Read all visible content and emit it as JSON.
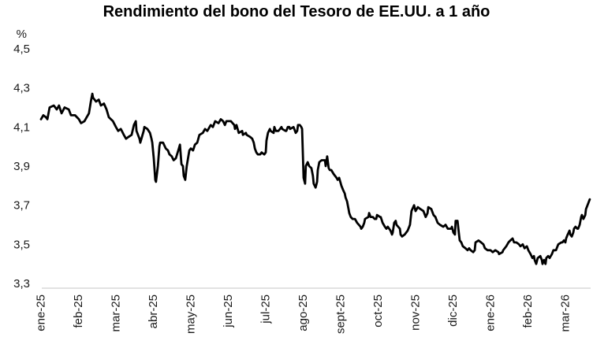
{
  "chart_data": {
    "type": "line",
    "title": "Rendimiento del bono del Tesoro de EE.UU. a 1 año",
    "unit_label": "%",
    "ylim": [
      3.3,
      4.5
    ],
    "ytick_step": 0.2,
    "ytick_labels": [
      "4,5",
      "4,3",
      "4,1",
      "3,9",
      "3,7",
      "3,5",
      "3,3"
    ],
    "ytick_values": [
      4.5,
      4.3,
      4.1,
      3.9,
      3.7,
      3.5,
      3.3
    ],
    "x_categories": [
      "ene-25",
      "feb-25",
      "mar-25",
      "abr-25",
      "may-25",
      "jun-25",
      "jul-25",
      "ago-25",
      "sept-25",
      "oct-25",
      "nov-25",
      "dic-25",
      "ene-26",
      "feb-26",
      "mar-26"
    ],
    "grid": false,
    "legend_position": "none",
    "axis_color": "#d9d9d9",
    "line_color": "#000000",
    "line_width": 2.8,
    "series": [
      {
        "name": "Rendimiento del bono del Tesoro de EE.UU. a 1 año",
        "x_unit": "meses desde ene-25",
        "points": [
          [
            0.0,
            4.14
          ],
          [
            0.06,
            4.16
          ],
          [
            0.13,
            4.15
          ],
          [
            0.17,
            4.14
          ],
          [
            0.23,
            4.2
          ],
          [
            0.34,
            4.21
          ],
          [
            0.42,
            4.19
          ],
          [
            0.48,
            4.21
          ],
          [
            0.55,
            4.17
          ],
          [
            0.63,
            4.2
          ],
          [
            0.74,
            4.19
          ],
          [
            0.8,
            4.16
          ],
          [
            0.91,
            4.16
          ],
          [
            1.01,
            4.14
          ],
          [
            1.07,
            4.12
          ],
          [
            1.16,
            4.13
          ],
          [
            1.22,
            4.15
          ],
          [
            1.28,
            4.17
          ],
          [
            1.33,
            4.23
          ],
          [
            1.37,
            4.27
          ],
          [
            1.39,
            4.25
          ],
          [
            1.47,
            4.23
          ],
          [
            1.54,
            4.24
          ],
          [
            1.6,
            4.21
          ],
          [
            1.68,
            4.22
          ],
          [
            1.75,
            4.19
          ],
          [
            1.81,
            4.15
          ],
          [
            1.92,
            4.13
          ],
          [
            2.0,
            4.1
          ],
          [
            2.06,
            4.08
          ],
          [
            2.13,
            4.09
          ],
          [
            2.21,
            4.06
          ],
          [
            2.27,
            4.04
          ],
          [
            2.34,
            4.05
          ],
          [
            2.42,
            4.06
          ],
          [
            2.48,
            4.11
          ],
          [
            2.53,
            4.13
          ],
          [
            2.55,
            4.08
          ],
          [
            2.63,
            4.04
          ],
          [
            2.65,
            4.02
          ],
          [
            2.74,
            4.08
          ],
          [
            2.76,
            4.1
          ],
          [
            2.84,
            4.09
          ],
          [
            2.91,
            4.07
          ],
          [
            2.95,
            4.04
          ],
          [
            2.97,
            4.02
          ],
          [
            3.01,
            3.94
          ],
          [
            3.05,
            3.83
          ],
          [
            3.07,
            3.82
          ],
          [
            3.12,
            3.9
          ],
          [
            3.16,
            4.0
          ],
          [
            3.18,
            4.02
          ],
          [
            3.26,
            4.02
          ],
          [
            3.33,
            3.99
          ],
          [
            3.39,
            3.98
          ],
          [
            3.43,
            3.96
          ],
          [
            3.49,
            3.95
          ],
          [
            3.54,
            3.93
          ],
          [
            3.6,
            3.94
          ],
          [
            3.68,
            3.99
          ],
          [
            3.71,
            4.01
          ],
          [
            3.75,
            3.91
          ],
          [
            3.79,
            3.9
          ],
          [
            3.81,
            3.85
          ],
          [
            3.85,
            3.83
          ],
          [
            3.89,
            3.9
          ],
          [
            3.96,
            3.98
          ],
          [
            4.0,
            3.99
          ],
          [
            4.06,
            3.98
          ],
          [
            4.11,
            4.01
          ],
          [
            4.17,
            4.02
          ],
          [
            4.23,
            4.06
          ],
          [
            4.32,
            4.07
          ],
          [
            4.38,
            4.09
          ],
          [
            4.44,
            4.08
          ],
          [
            4.53,
            4.11
          ],
          [
            4.59,
            4.1
          ],
          [
            4.65,
            4.13
          ],
          [
            4.74,
            4.12
          ],
          [
            4.8,
            4.14
          ],
          [
            4.86,
            4.13
          ],
          [
            4.91,
            4.11
          ],
          [
            4.95,
            4.13
          ],
          [
            5.01,
            4.13
          ],
          [
            5.07,
            4.13
          ],
          [
            5.16,
            4.11
          ],
          [
            5.18,
            4.09
          ],
          [
            5.22,
            4.11
          ],
          [
            5.28,
            4.07
          ],
          [
            5.37,
            4.08
          ],
          [
            5.39,
            4.06
          ],
          [
            5.47,
            4.07
          ],
          [
            5.49,
            4.06
          ],
          [
            5.58,
            4.05
          ],
          [
            5.64,
            4.04
          ],
          [
            5.68,
            4.02
          ],
          [
            5.71,
            3.99
          ],
          [
            5.75,
            3.97
          ],
          [
            5.79,
            3.96
          ],
          [
            5.85,
            3.96
          ],
          [
            5.89,
            3.97
          ],
          [
            5.96,
            3.96
          ],
          [
            6.0,
            3.97
          ],
          [
            6.02,
            4.03
          ],
          [
            6.06,
            4.07
          ],
          [
            6.11,
            4.09
          ],
          [
            6.13,
            4.08
          ],
          [
            6.21,
            4.07
          ],
          [
            6.23,
            4.1
          ],
          [
            6.27,
            4.08
          ],
          [
            6.34,
            4.08
          ],
          [
            6.38,
            4.09
          ],
          [
            6.42,
            4.1
          ],
          [
            6.44,
            4.09
          ],
          [
            6.53,
            4.08
          ],
          [
            6.55,
            4.08
          ],
          [
            6.59,
            4.1
          ],
          [
            6.63,
            4.1
          ],
          [
            6.65,
            4.09
          ],
          [
            6.74,
            4.1
          ],
          [
            6.8,
            4.07
          ],
          [
            6.84,
            4.08
          ],
          [
            6.86,
            4.11
          ],
          [
            6.91,
            4.11
          ],
          [
            6.95,
            4.1
          ],
          [
            6.97,
            4.09
          ],
          [
            7.01,
            3.84
          ],
          [
            7.05,
            3.81
          ],
          [
            7.07,
            3.9
          ],
          [
            7.12,
            3.92
          ],
          [
            7.16,
            3.9
          ],
          [
            7.22,
            3.89
          ],
          [
            7.26,
            3.85
          ],
          [
            7.28,
            3.81
          ],
          [
            7.33,
            3.79
          ],
          [
            7.37,
            3.82
          ],
          [
            7.39,
            3.88
          ],
          [
            7.43,
            3.92
          ],
          [
            7.49,
            3.93
          ],
          [
            7.58,
            3.93
          ],
          [
            7.6,
            3.9
          ],
          [
            7.64,
            3.95
          ],
          [
            7.68,
            3.89
          ],
          [
            7.71,
            3.88
          ],
          [
            7.75,
            3.88
          ],
          [
            7.81,
            3.86
          ],
          [
            7.89,
            3.84
          ],
          [
            7.92,
            3.83
          ],
          [
            7.96,
            3.84
          ],
          [
            8.02,
            3.8
          ],
          [
            8.06,
            3.78
          ],
          [
            8.11,
            3.76
          ],
          [
            8.13,
            3.74
          ],
          [
            8.17,
            3.72
          ],
          [
            8.21,
            3.68
          ],
          [
            8.23,
            3.66
          ],
          [
            8.27,
            3.64
          ],
          [
            8.32,
            3.63
          ],
          [
            8.38,
            3.63
          ],
          [
            8.44,
            3.61
          ],
          [
            8.53,
            3.59
          ],
          [
            8.55,
            3.58
          ],
          [
            8.59,
            3.59
          ],
          [
            8.63,
            3.61
          ],
          [
            8.65,
            3.63
          ],
          [
            8.74,
            3.64
          ],
          [
            8.76,
            3.66
          ],
          [
            8.8,
            3.64
          ],
          [
            8.86,
            3.64
          ],
          [
            8.91,
            3.63
          ],
          [
            8.95,
            3.63
          ],
          [
            8.97,
            3.65
          ],
          [
            9.05,
            3.64
          ],
          [
            9.07,
            3.64
          ],
          [
            9.12,
            3.61
          ],
          [
            9.18,
            3.59
          ],
          [
            9.22,
            3.58
          ],
          [
            9.26,
            3.59
          ],
          [
            9.33,
            3.57
          ],
          [
            9.37,
            3.55
          ],
          [
            9.39,
            3.56
          ],
          [
            9.43,
            3.61
          ],
          [
            9.47,
            3.62
          ],
          [
            9.49,
            3.6
          ],
          [
            9.58,
            3.58
          ],
          [
            9.6,
            3.55
          ],
          [
            9.64,
            3.54
          ],
          [
            9.71,
            3.55
          ],
          [
            9.79,
            3.57
          ],
          [
            9.85,
            3.6
          ],
          [
            9.89,
            3.67
          ],
          [
            9.96,
            3.7
          ],
          [
            10.0,
            3.67
          ],
          [
            10.06,
            3.69
          ],
          [
            10.13,
            3.68
          ],
          [
            10.21,
            3.67
          ],
          [
            10.27,
            3.64
          ],
          [
            10.32,
            3.66
          ],
          [
            10.34,
            3.69
          ],
          [
            10.42,
            3.68
          ],
          [
            10.44,
            3.67
          ],
          [
            10.48,
            3.65
          ],
          [
            10.53,
            3.64
          ],
          [
            10.55,
            3.63
          ],
          [
            10.59,
            3.61
          ],
          [
            10.65,
            3.6
          ],
          [
            10.74,
            3.59
          ],
          [
            10.8,
            3.6
          ],
          [
            10.86,
            3.58
          ],
          [
            10.95,
            3.58
          ],
          [
            10.97,
            3.59
          ],
          [
            11.01,
            3.56
          ],
          [
            11.05,
            3.55
          ],
          [
            11.07,
            3.62
          ],
          [
            11.12,
            3.62
          ],
          [
            11.16,
            3.55
          ],
          [
            11.18,
            3.52
          ],
          [
            11.22,
            3.51
          ],
          [
            11.26,
            3.49
          ],
          [
            11.33,
            3.48
          ],
          [
            11.39,
            3.47
          ],
          [
            11.43,
            3.48
          ],
          [
            11.47,
            3.47
          ],
          [
            11.54,
            3.46
          ],
          [
            11.58,
            3.47
          ],
          [
            11.6,
            3.51
          ],
          [
            11.68,
            3.52
          ],
          [
            11.75,
            3.51
          ],
          [
            11.81,
            3.5
          ],
          [
            11.85,
            3.48
          ],
          [
            11.92,
            3.47
          ],
          [
            12.0,
            3.47
          ],
          [
            12.06,
            3.46
          ],
          [
            12.13,
            3.47
          ],
          [
            12.21,
            3.46
          ],
          [
            12.23,
            3.45
          ],
          [
            12.32,
            3.46
          ],
          [
            12.34,
            3.47
          ],
          [
            12.42,
            3.49
          ],
          [
            12.48,
            3.51
          ],
          [
            12.53,
            3.52
          ],
          [
            12.59,
            3.53
          ],
          [
            12.63,
            3.51
          ],
          [
            12.69,
            3.51
          ],
          [
            12.76,
            3.5
          ],
          [
            12.8,
            3.49
          ],
          [
            12.86,
            3.5
          ],
          [
            12.91,
            3.48
          ],
          [
            12.97,
            3.49
          ],
          [
            13.01,
            3.47
          ],
          [
            13.07,
            3.45
          ],
          [
            13.12,
            3.43
          ],
          [
            13.16,
            3.44
          ],
          [
            13.18,
            3.42
          ],
          [
            13.22,
            3.4
          ],
          [
            13.26,
            3.43
          ],
          [
            13.33,
            3.44
          ],
          [
            13.37,
            3.42
          ],
          [
            13.39,
            3.4
          ],
          [
            13.43,
            3.42
          ],
          [
            13.47,
            3.4
          ],
          [
            13.49,
            3.43
          ],
          [
            13.54,
            3.44
          ],
          [
            13.58,
            3.43
          ],
          [
            13.64,
            3.45
          ],
          [
            13.68,
            3.47
          ],
          [
            13.71,
            3.47
          ],
          [
            13.75,
            3.47
          ],
          [
            13.79,
            3.49
          ],
          [
            13.81,
            3.5
          ],
          [
            13.89,
            3.51
          ],
          [
            13.92,
            3.51
          ],
          [
            13.96,
            3.52
          ],
          [
            14.0,
            3.51
          ],
          [
            14.02,
            3.53
          ],
          [
            14.06,
            3.55
          ],
          [
            14.11,
            3.57
          ],
          [
            14.13,
            3.55
          ],
          [
            14.17,
            3.54
          ],
          [
            14.21,
            3.56
          ],
          [
            14.23,
            3.58
          ],
          [
            14.27,
            3.59
          ],
          [
            14.32,
            3.58
          ],
          [
            14.34,
            3.58
          ],
          [
            14.38,
            3.6
          ],
          [
            14.42,
            3.64
          ],
          [
            14.44,
            3.65
          ],
          [
            14.48,
            3.63
          ],
          [
            14.53,
            3.65
          ],
          [
            14.55,
            3.68
          ],
          [
            14.59,
            3.7
          ],
          [
            14.63,
            3.72
          ],
          [
            14.65,
            3.73
          ]
        ]
      }
    ]
  }
}
